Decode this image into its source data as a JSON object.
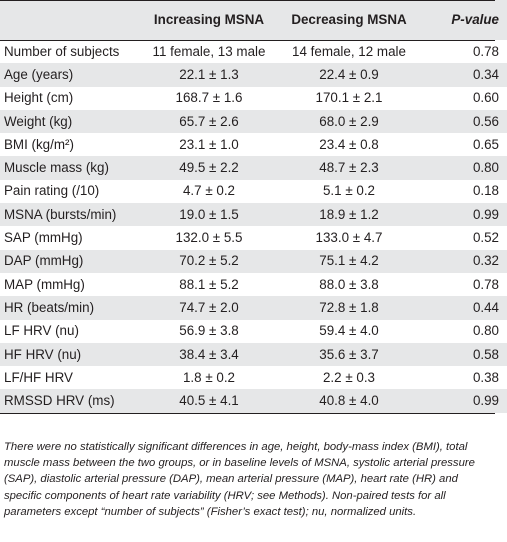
{
  "table": {
    "headers": [
      "",
      "Increasing MSNA",
      "Decreasing MSNA",
      "P-value"
    ],
    "header_pvalue_italic": "P",
    "header_pvalue_rest": "-value",
    "rows": [
      {
        "label": "Number of subjects",
        "inc": "11 female, 13 male",
        "dec": "14 female, 12 male",
        "p": "0.78"
      },
      {
        "label": "Age (years)",
        "inc": "22.1 ± 1.3",
        "dec": "22.4 ± 0.9",
        "p": "0.34"
      },
      {
        "label": "Height (cm)",
        "inc": "168.7 ± 1.6",
        "dec": "170.1 ± 2.1",
        "p": "0.60"
      },
      {
        "label": "Weight (kg)",
        "inc": "65.7 ± 2.6",
        "dec": "68.0 ± 2.9",
        "p": "0.56"
      },
      {
        "label": "BMI (kg/m²)",
        "inc": "23.1 ± 1.0",
        "dec": "23.4 ± 0.8",
        "p": "0.65"
      },
      {
        "label": "Muscle mass (kg)",
        "inc": "49.5 ± 2.2",
        "dec": "48.7 ± 2.3",
        "p": "0.80"
      },
      {
        "label": "Pain rating (/10)",
        "inc": "4.7 ± 0.2",
        "dec": "5.1 ± 0.2",
        "p": "0.18"
      },
      {
        "label": "MSNA (bursts/min)",
        "inc": "19.0 ± 1.5",
        "dec": "18.9 ± 1.2",
        "p": "0.99"
      },
      {
        "label": "SAP (mmHg)",
        "inc": "132.0 ± 5.5",
        "dec": "133.0 ± 4.7",
        "p": "0.52"
      },
      {
        "label": "DAP (mmHg)",
        "inc": "70.2 ± 5.2",
        "dec": "75.1 ± 4.2",
        "p": "0.32"
      },
      {
        "label": "MAP (mmHg)",
        "inc": "88.1 ± 5.2",
        "dec": "88.0 ± 3.8",
        "p": "0.78"
      },
      {
        "label": "HR (beats/min)",
        "inc": "74.7 ± 2.0",
        "dec": "72.8 ± 1.8",
        "p": "0.44"
      },
      {
        "label": "LF HRV (nu)",
        "inc": "56.9 ± 3.8",
        "dec": "59.4 ± 4.0",
        "p": "0.80"
      },
      {
        "label": "HF HRV (nu)",
        "inc": "38.4 ± 3.4",
        "dec": "35.6 ± 3.7",
        "p": "0.58"
      },
      {
        "label": "LF/HF HRV",
        "inc": "1.8 ± 0.2",
        "dec": "2.2 ± 0.3",
        "p": "0.38"
      },
      {
        "label": "RMSSD HRV (ms)",
        "inc": "40.5 ± 4.1",
        "dec": "40.8 ± 4.0",
        "p": "0.99"
      }
    ]
  },
  "footnote": "There were no statistically significant differences in age, height, body-mass index (BMI), total muscle mass between the two groups, or in baseline levels of MSNA, systolic arterial pressure (SAP), diastolic arterial pressure (DAP), mean arterial pressure (MAP), heart rate (HR) and specific components of heart rate variability (HRV; see Methods). Non-paired tests for all parameters except “number of subjects” (Fisher’s exact test); nu, normalized units."
}
